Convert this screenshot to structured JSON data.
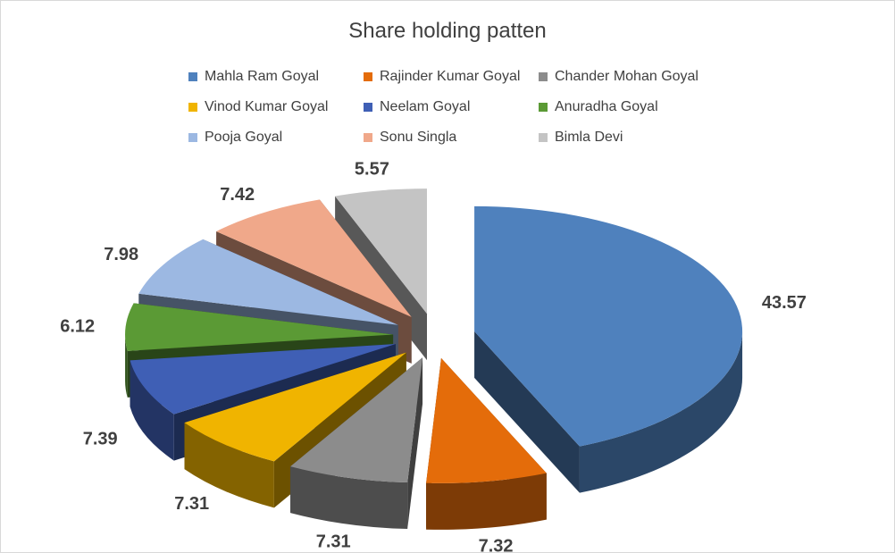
{
  "chart_data": {
    "type": "pie",
    "title": "Share holding patten",
    "legend_position": "top",
    "slices": [
      {
        "label": "Mahla Ram Goyal",
        "value": 43.57,
        "value_label": "43.57",
        "color": "#4f81bd"
      },
      {
        "label": "Rajinder Kumar Goyal",
        "value": 7.32,
        "value_label": "7.32",
        "color": "#e46c0a"
      },
      {
        "label": "Chander Mohan Goyal",
        "value": 7.31,
        "value_label": "7.31",
        "color": "#8c8c8c"
      },
      {
        "label": "Vinod Kumar  Goyal",
        "value": 7.31,
        "value_label": "7.31",
        "color": "#f0b400"
      },
      {
        "label": "Neelam Goyal",
        "value": 7.39,
        "value_label": "7.39",
        "color": "#3f5fb5"
      },
      {
        "label": "Anuradha Goyal",
        "value": 6.12,
        "value_label": "6.12",
        "color": "#5b9a35"
      },
      {
        "label": "Pooja Goyal",
        "value": 7.98,
        "value_label": "7.98",
        "color": "#9cb8e2"
      },
      {
        "label": "Sonu Singla",
        "value": 7.42,
        "value_label": "7.42",
        "color": "#f0a88a"
      },
      {
        "label": "Bimla Devi",
        "value": 5.57,
        "value_label": "5.57",
        "color": "#c4c4c4"
      }
    ]
  }
}
